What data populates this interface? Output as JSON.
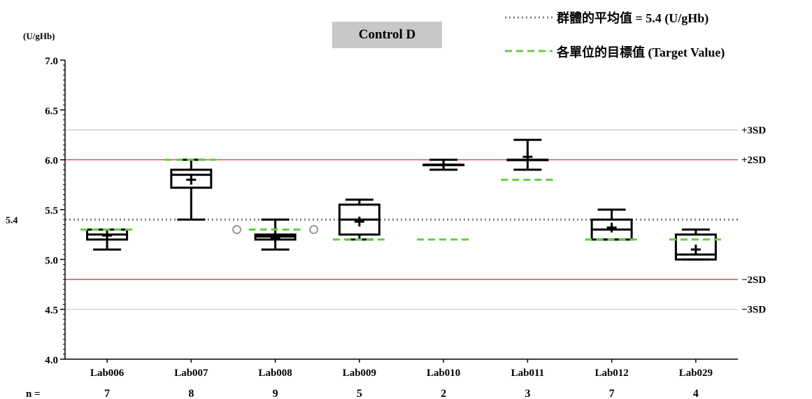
{
  "title": "Control D",
  "unit": "(U/gHb)",
  "legend": {
    "mean_label": "群體的平均值 = 5.4 (U/gHb)",
    "target_label": "各單位的目標值 (Target Value)"
  },
  "colors": {
    "mean_line": "#808080",
    "target_line": "#66cc44",
    "sd2_line": "#dd2222",
    "sd3_line": "#c8c8c8",
    "box": "#000000",
    "outlier": "#999999"
  },
  "chart_data": {
    "type": "boxplot",
    "title": "Control D",
    "ylabel": "(U/gHb)",
    "ylim": [
      4.0,
      7.0
    ],
    "yticks": [
      "4.0",
      "4.5",
      "5.0",
      "5.5",
      "6.0",
      "6.5",
      "7.0"
    ],
    "mean": 5.4,
    "mean_tick_label": "5.4",
    "n_label": "n =",
    "reference_lines": [
      {
        "label": "+3SD",
        "value": 6.3,
        "kind": "sd3"
      },
      {
        "label": "+2SD",
        "value": 6.0,
        "kind": "sd2"
      },
      {
        "label": "−2SD",
        "value": 4.8,
        "kind": "sd2"
      },
      {
        "label": "−3SD",
        "value": 4.5,
        "kind": "sd3"
      }
    ],
    "categories": [
      "Lab006",
      "Lab007",
      "Lab008",
      "Lab009",
      "Lab010",
      "Lab011",
      "Lab012",
      "Lab029"
    ],
    "n": [
      "7",
      "8",
      "9",
      "5",
      "2",
      "3",
      "7",
      "4"
    ],
    "boxes": [
      {
        "min": 5.1,
        "q1": 5.2,
        "median": 5.25,
        "q3": 5.3,
        "max": 5.3,
        "mean": 5.24,
        "target": 5.3
      },
      {
        "min": 5.4,
        "q1": 5.72,
        "median": 5.85,
        "q3": 5.9,
        "max": 6.0,
        "mean": 5.8,
        "target": 6.0
      },
      {
        "min": 5.1,
        "q1": 5.2,
        "median": 5.23,
        "q3": 5.25,
        "max": 5.4,
        "mean": 5.22,
        "target": 5.3,
        "outliers": [
          5.3,
          5.3
        ]
      },
      {
        "min": 5.2,
        "q1": 5.25,
        "median": 5.4,
        "q3": 5.55,
        "max": 5.6,
        "mean": 5.38,
        "target": 5.2
      },
      {
        "min": 5.9,
        "q1": 5.95,
        "median": 5.95,
        "q3": 5.95,
        "max": 6.0,
        "mean": 5.95,
        "target": 5.2
      },
      {
        "min": 5.9,
        "q1": 6.0,
        "median": 6.0,
        "q3": 6.0,
        "max": 6.2,
        "mean": 6.03,
        "target": 5.8
      },
      {
        "min": 5.2,
        "q1": 5.2,
        "median": 5.3,
        "q3": 5.4,
        "max": 5.5,
        "mean": 5.32,
        "target": 5.2
      },
      {
        "min": 5.0,
        "q1": 5.0,
        "median": 5.05,
        "q3": 5.25,
        "max": 5.3,
        "mean": 5.1,
        "target": 5.2
      }
    ]
  }
}
